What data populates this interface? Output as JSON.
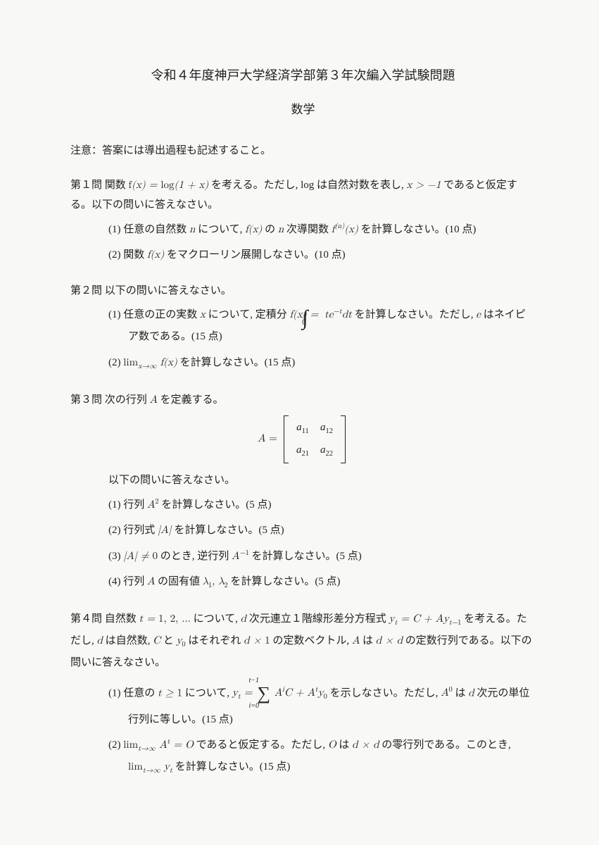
{
  "colors": {
    "bg": "#f8f8f6",
    "text": "#222222"
  },
  "title": "令和４年度神戸大学経済学部第３年次編入学試験問題",
  "subject": "数学",
  "note": "注意：答案には導出過程も記述すること。",
  "p1": {
    "label": "第１問",
    "intro_a": "関数 ",
    "intro_math": "f(x) = log(1 + x)",
    "intro_b": " を考える。ただし, log は自然対数を表し, ",
    "intro_math2": "x > −1",
    "intro_c": " であると仮定する。以下の問いに答えなさい。",
    "s1_a": "(1) 任意の自然数 ",
    "s1_m1": "n",
    "s1_b": " について, ",
    "s1_m2": "f(x)",
    "s1_c": " の ",
    "s1_m3": "n",
    "s1_d": " 次導関数 ",
    "s1_m4": "f⁽ⁿ⁾(x)",
    "s1_e": " を計算しなさい。(10 点)",
    "s2_a": "(2) 関数 ",
    "s2_m": "f(x)",
    "s2_b": " をマクローリン展開しなさい。(10 点)"
  },
  "p2": {
    "label": "第２問",
    "intro": "以下の問いに答えなさい。",
    "s1_a": "(1) 任意の正の実数 ",
    "s1_m1": "x",
    "s1_b": " について, 定積分 ",
    "s1_m2a": "f(x) = ",
    "int_lower": "0",
    "int_upper": "x",
    "s1_m2b": "te⁻ᵗdt",
    "s1_c": " を計算しなさい。ただし, ",
    "s1_m3": "e",
    "s1_d": " はネイピア数である。(15 点)",
    "s2_a": "(2) ",
    "s2_m": "limₓ→∞ f(x)",
    "s2_b": " を計算しなさい。(15 点)"
  },
  "p3": {
    "label": "第３問",
    "intro_a": "次の行列 ",
    "intro_m": "A",
    "intro_b": " を定義する。",
    "matrix": {
      "a11": "a₁₁",
      "a12": "a₁₂",
      "a21": "a₂₁",
      "a22": "a₂₂"
    },
    "eq_lhs": "A = ",
    "after": "以下の問いに答えなさい。",
    "s1": "(1) 行列 A² を計算しなさい。(5 点)",
    "s2": "(2) 行列式 |A| を計算しなさい。(5 点)",
    "s3": "(3) |A| ≠ 0 のとき, 逆行列 A⁻¹ を計算しなさい。(5 点)",
    "s4": "(4) 行列 A の固有値 λ₁, λ₂ を計算しなさい。(5 点)"
  },
  "p4": {
    "label": "第４問",
    "intro_a": "自然数 ",
    "intro_m1": "t = 1, 2, …",
    "intro_b": " について, ",
    "intro_m2": "d",
    "intro_c": " 次元連立１階線形差分方程式 ",
    "intro_m3": "yₜ = C + Ayₜ₋₁",
    "intro_d": " を考える。ただし, ",
    "intro_m4": "d",
    "intro_e": " は自然数, ",
    "intro_m5": "C",
    "intro_f": " と ",
    "intro_m6": "y₀",
    "intro_g": " はそれぞれ ",
    "intro_m7": "d × 1",
    "intro_h": " の定数ベクトル, ",
    "intro_m8": "A",
    "intro_i": " は ",
    "intro_m9": "d × d",
    "intro_j": " の定数行列である。以下の問いに答えなさい。",
    "s1_a": "(1) 任意の ",
    "s1_m1": "t ≥ 1",
    "s1_b": " について, ",
    "s1_m2": "yₜ = ",
    "sum_top": "t−1",
    "sum_bot": "i=0",
    "s1_m3": "AⁱC + Aᵗy₀",
    "s1_c": " を示しなさい。ただし, ",
    "s1_m4": "A⁰",
    "s1_d1": " は ",
    "s1_m5": "d",
    "s1_d": " 次元の単位行列に等しい。(15 点)",
    "s2_a": "(2) ",
    "s2_m1": "limₜ→∞ Aᵗ = O",
    "s2_b": " であると仮定する。ただし, ",
    "s2_m2": "O",
    "s2_c": " は ",
    "s2_m3": "d × d",
    "s2_d": " の零行列である。このとき, ",
    "s2_m4": "limₜ→∞ yₜ",
    "s2_e": " を計算しなさい。(15 点)"
  }
}
